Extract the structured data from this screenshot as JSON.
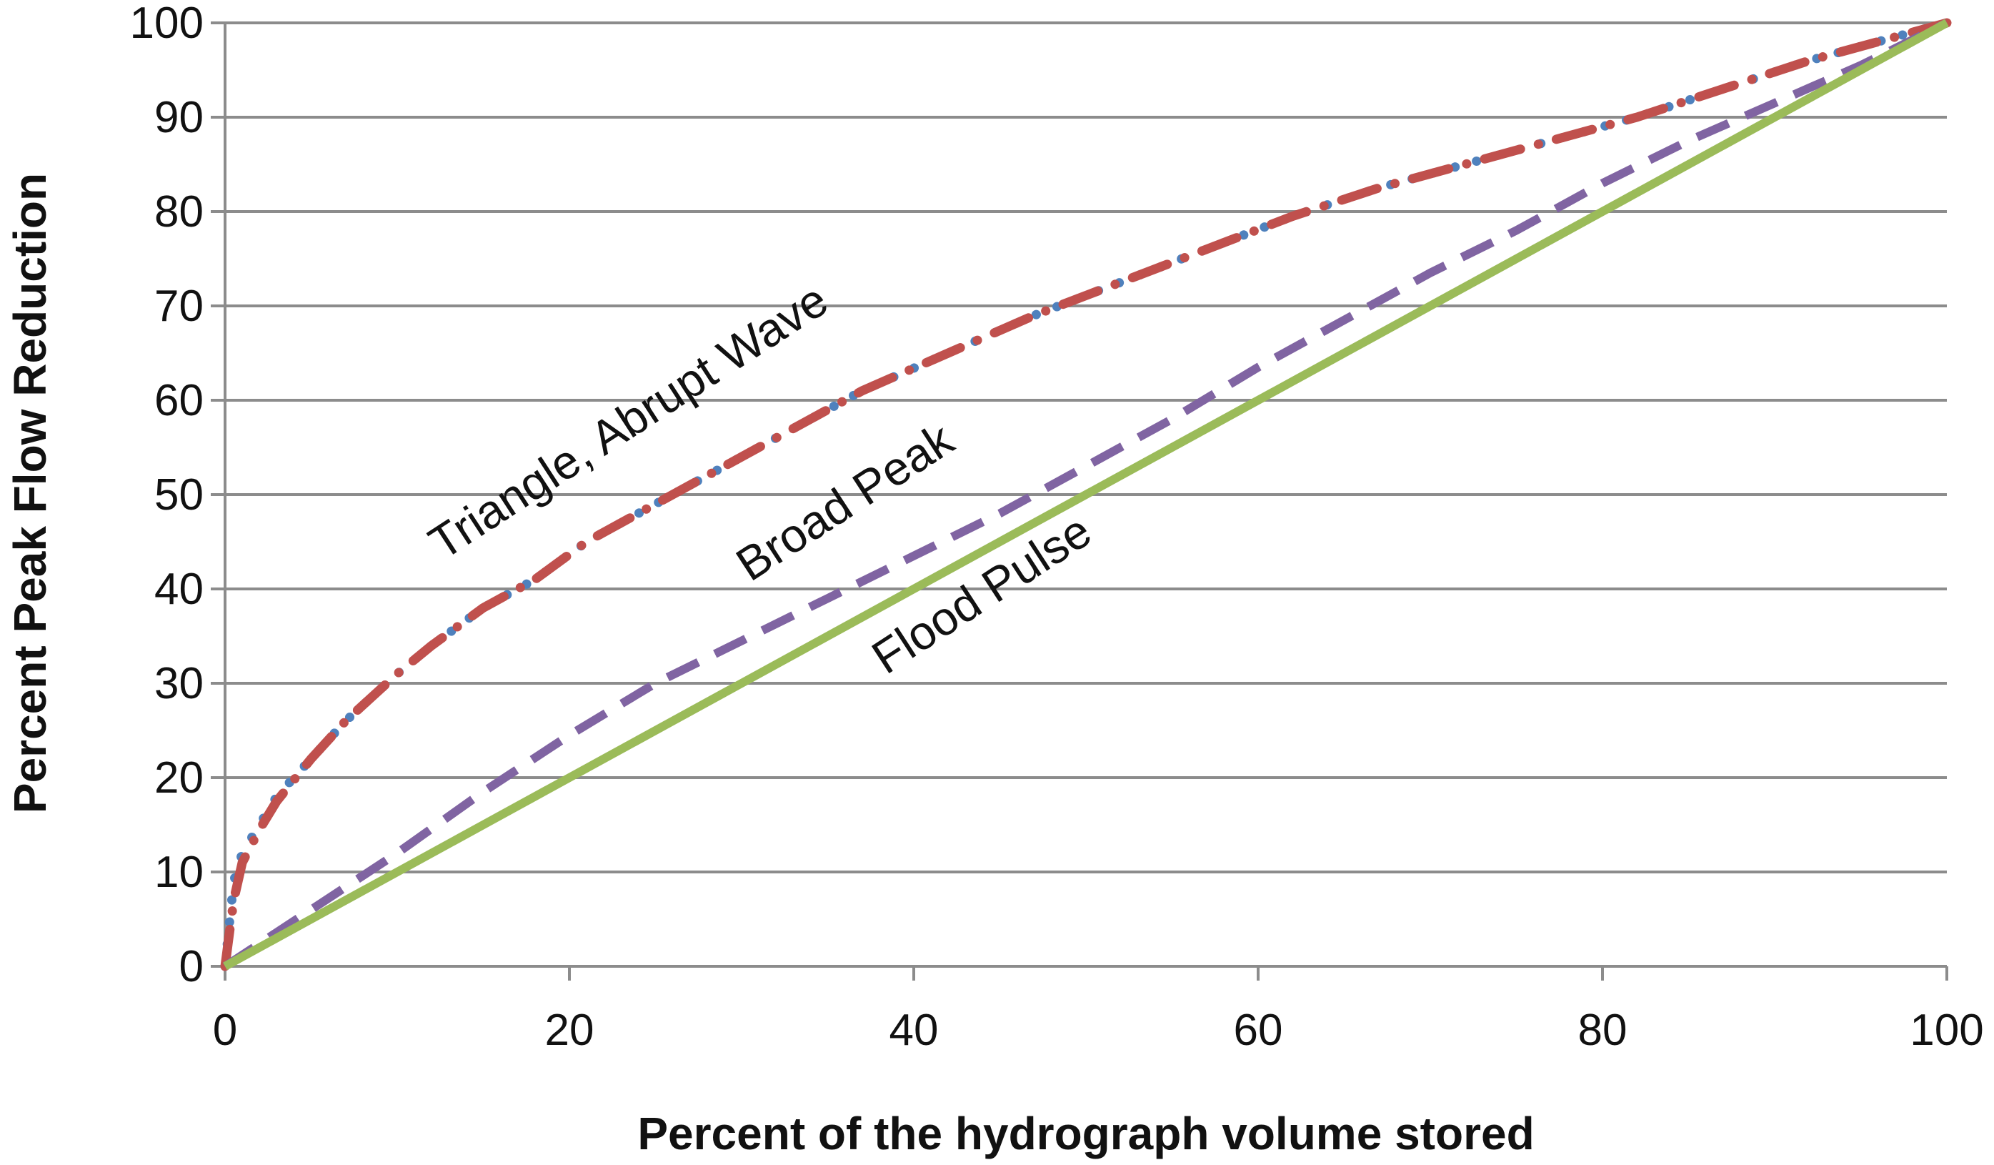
{
  "chart_data": {
    "type": "line",
    "xlabel": "Percent of the hydrograph volume stored",
    "ylabel": "Percent Peak Flow Reduction",
    "xlim": [
      0,
      100
    ],
    "ylim": [
      0,
      100
    ],
    "x_ticks": [
      0,
      20,
      40,
      60,
      80,
      100
    ],
    "y_ticks": [
      0,
      10,
      20,
      30,
      40,
      50,
      60,
      70,
      80,
      90,
      100
    ],
    "grid": "horizontal",
    "legend": "none",
    "annotations": [
      "Triangle, Abrupt Wave",
      "Broad Peak",
      "Flood Pulse"
    ],
    "series": [
      {
        "color": "#4F81BD",
        "style": "dotted",
        "x": [
          0,
          0.5,
          1,
          2,
          3,
          5,
          7,
          10,
          12,
          15,
          18,
          21,
          25,
          29,
          33,
          37,
          42,
          47,
          52,
          57,
          62,
          67,
          72,
          77,
          82,
          87,
          92,
          96,
          100
        ],
        "y": [
          0,
          9,
          12,
          15,
          18,
          22,
          26,
          31,
          34,
          38,
          41,
          45,
          49,
          53,
          57,
          61,
          65,
          69,
          72.5,
          76,
          79.5,
          82.5,
          85,
          87.5,
          90,
          93,
          96,
          98,
          100
        ]
      },
      {
        "color": "#C0504D",
        "style": "dash-dot",
        "x": [
          0,
          0.5,
          1,
          2,
          3,
          5,
          7,
          10,
          12,
          15,
          18,
          21,
          25,
          29,
          33,
          37,
          42,
          47,
          52,
          57,
          62,
          67,
          72,
          77,
          82,
          87,
          92,
          96,
          100
        ],
        "y": [
          0,
          7,
          11,
          14.5,
          17.5,
          22,
          26,
          31,
          34,
          38,
          41,
          45,
          49,
          53,
          57,
          61,
          65,
          69,
          72.5,
          76,
          79.5,
          82.5,
          85,
          87.5,
          90,
          93,
          96,
          98,
          100
        ]
      },
      {
        "color": "#8064A2",
        "style": "dashed",
        "x": [
          0,
          5,
          10,
          15,
          20,
          25,
          30,
          35,
          40,
          45,
          50,
          55,
          60,
          65,
          70,
          75,
          80,
          85,
          90,
          95,
          100
        ],
        "y": [
          0,
          6,
          12,
          18.5,
          24.5,
          30,
          34.5,
          39,
          43.5,
          48,
          53,
          58,
          63.5,
          68.5,
          73.5,
          78,
          83,
          87.5,
          91.5,
          95.5,
          100
        ]
      },
      {
        "color": "#9BBB59",
        "style": "solid",
        "x": [
          0,
          100
        ],
        "y": [
          0,
          100
        ]
      }
    ]
  }
}
